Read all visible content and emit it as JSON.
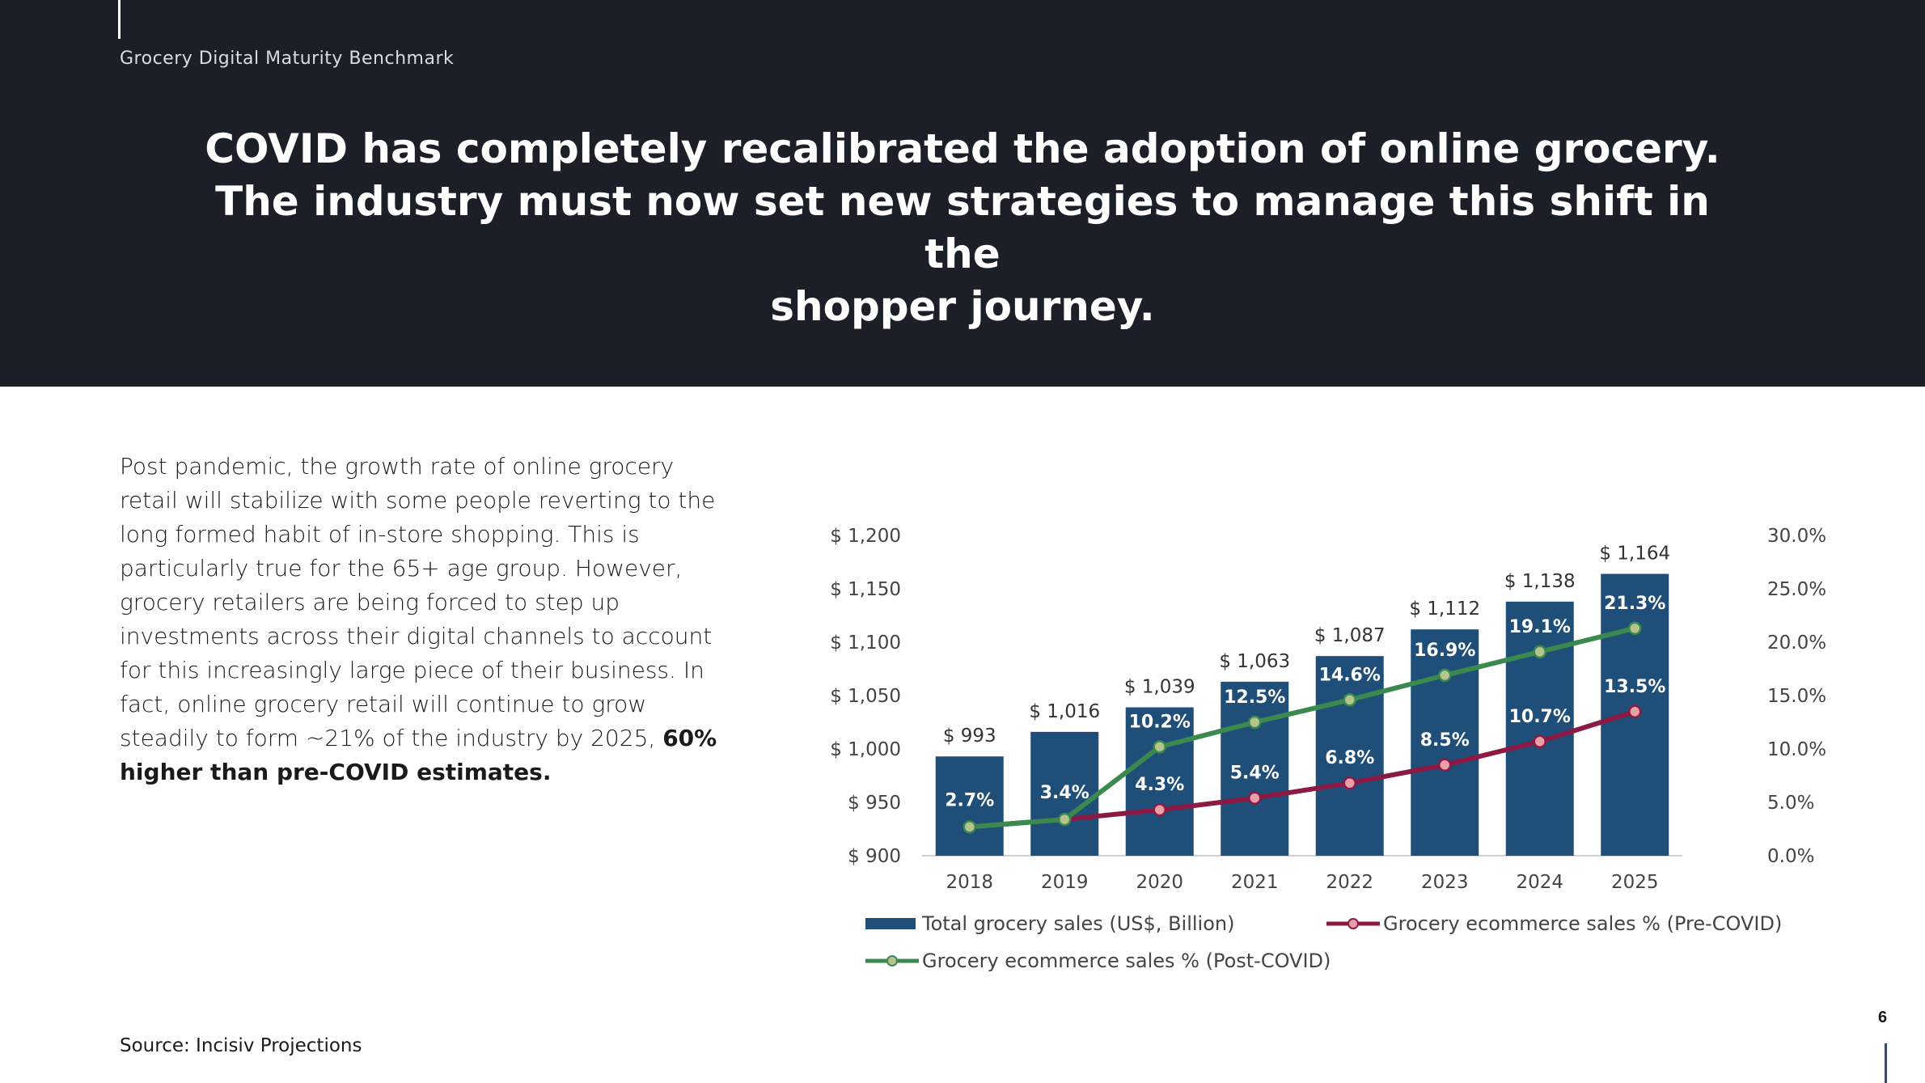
{
  "header": {
    "section_label": "Grocery Digital Maturity Benchmark",
    "headline_line1": "COVID has completely recalibrated the adoption of online grocery.",
    "headline_line2": "The industry must now set new strategies to manage this shift in the",
    "headline_line3": "shopper journey."
  },
  "body": {
    "paragraph_plain": "Post pandemic, the growth rate of online grocery retail will stabilize with some people reverting to the long formed habit of in-store shopping. This is particularly true for the 65+ age group. However, grocery retailers are being forced to step up investments across their digital channels to account for this increasingly large piece of their business. In fact, online grocery retail will continue to grow steadily to form ~21% of the industry by 2025,",
    "paragraph_bold": "60% higher than pre-COVID estimates."
  },
  "source": "Source: Incisiv Projections",
  "page_number": "6",
  "colors": {
    "header_bg": "#1b1f28",
    "bar": "#1f4e79",
    "pre_covid_line": "#8b1a45",
    "post_covid_line": "#3a8a4f",
    "marker_fill_post": "#b5c48c",
    "marker_fill_pre": "#e8a0a8"
  },
  "chart_data": {
    "type": "bar",
    "categories": [
      "2018",
      "2019",
      "2020",
      "2021",
      "2022",
      "2023",
      "2024",
      "2025"
    ],
    "bar_series": {
      "name": "Total grocery sales (US$, Billion)",
      "values": [
        993,
        1016,
        1039,
        1063,
        1087,
        1112,
        1138,
        1164
      ],
      "labels": [
        "$ 993",
        "$ 1,016",
        "$ 1,039",
        "$ 1,063",
        "$ 1,087",
        "$ 1,112",
        "$ 1,138",
        "$ 1,164"
      ]
    },
    "line_series": [
      {
        "name": "Grocery ecommerce sales % (Pre-COVID)",
        "values": [
          2.7,
          3.4,
          4.3,
          5.4,
          6.8,
          8.5,
          10.7,
          13.5
        ],
        "labels": [
          "",
          "",
          "4.3%",
          "5.4%",
          "6.8%",
          "8.5%",
          "10.7%",
          "13.5%"
        ]
      },
      {
        "name": "Grocery ecommerce sales % (Post-COVID)",
        "values": [
          2.7,
          3.4,
          10.2,
          12.5,
          14.6,
          16.9,
          19.1,
          21.3
        ],
        "labels": [
          "2.7%",
          "3.4%",
          "10.2%",
          "12.5%",
          "14.6%",
          "16.9%",
          "19.1%",
          "21.3%"
        ]
      }
    ],
    "y_left": {
      "ylim": [
        900,
        1200
      ],
      "ticks": [
        900,
        950,
        1000,
        1050,
        1100,
        1150,
        1200
      ],
      "tick_labels": [
        "$ 900",
        "$ 950",
        "$ 1,000",
        "$ 1,050",
        "$ 1,100",
        "$ 1,150",
        "$ 1,200"
      ]
    },
    "y_right": {
      "ylim": [
        0,
        30
      ],
      "ticks": [
        0,
        5,
        10,
        15,
        20,
        25,
        30
      ],
      "tick_labels": [
        "0.0%",
        "5.0%",
        "10.0%",
        "15.0%",
        "20.0%",
        "25.0%",
        "30.0%"
      ]
    },
    "grid": false,
    "legend_position": "bottom"
  }
}
